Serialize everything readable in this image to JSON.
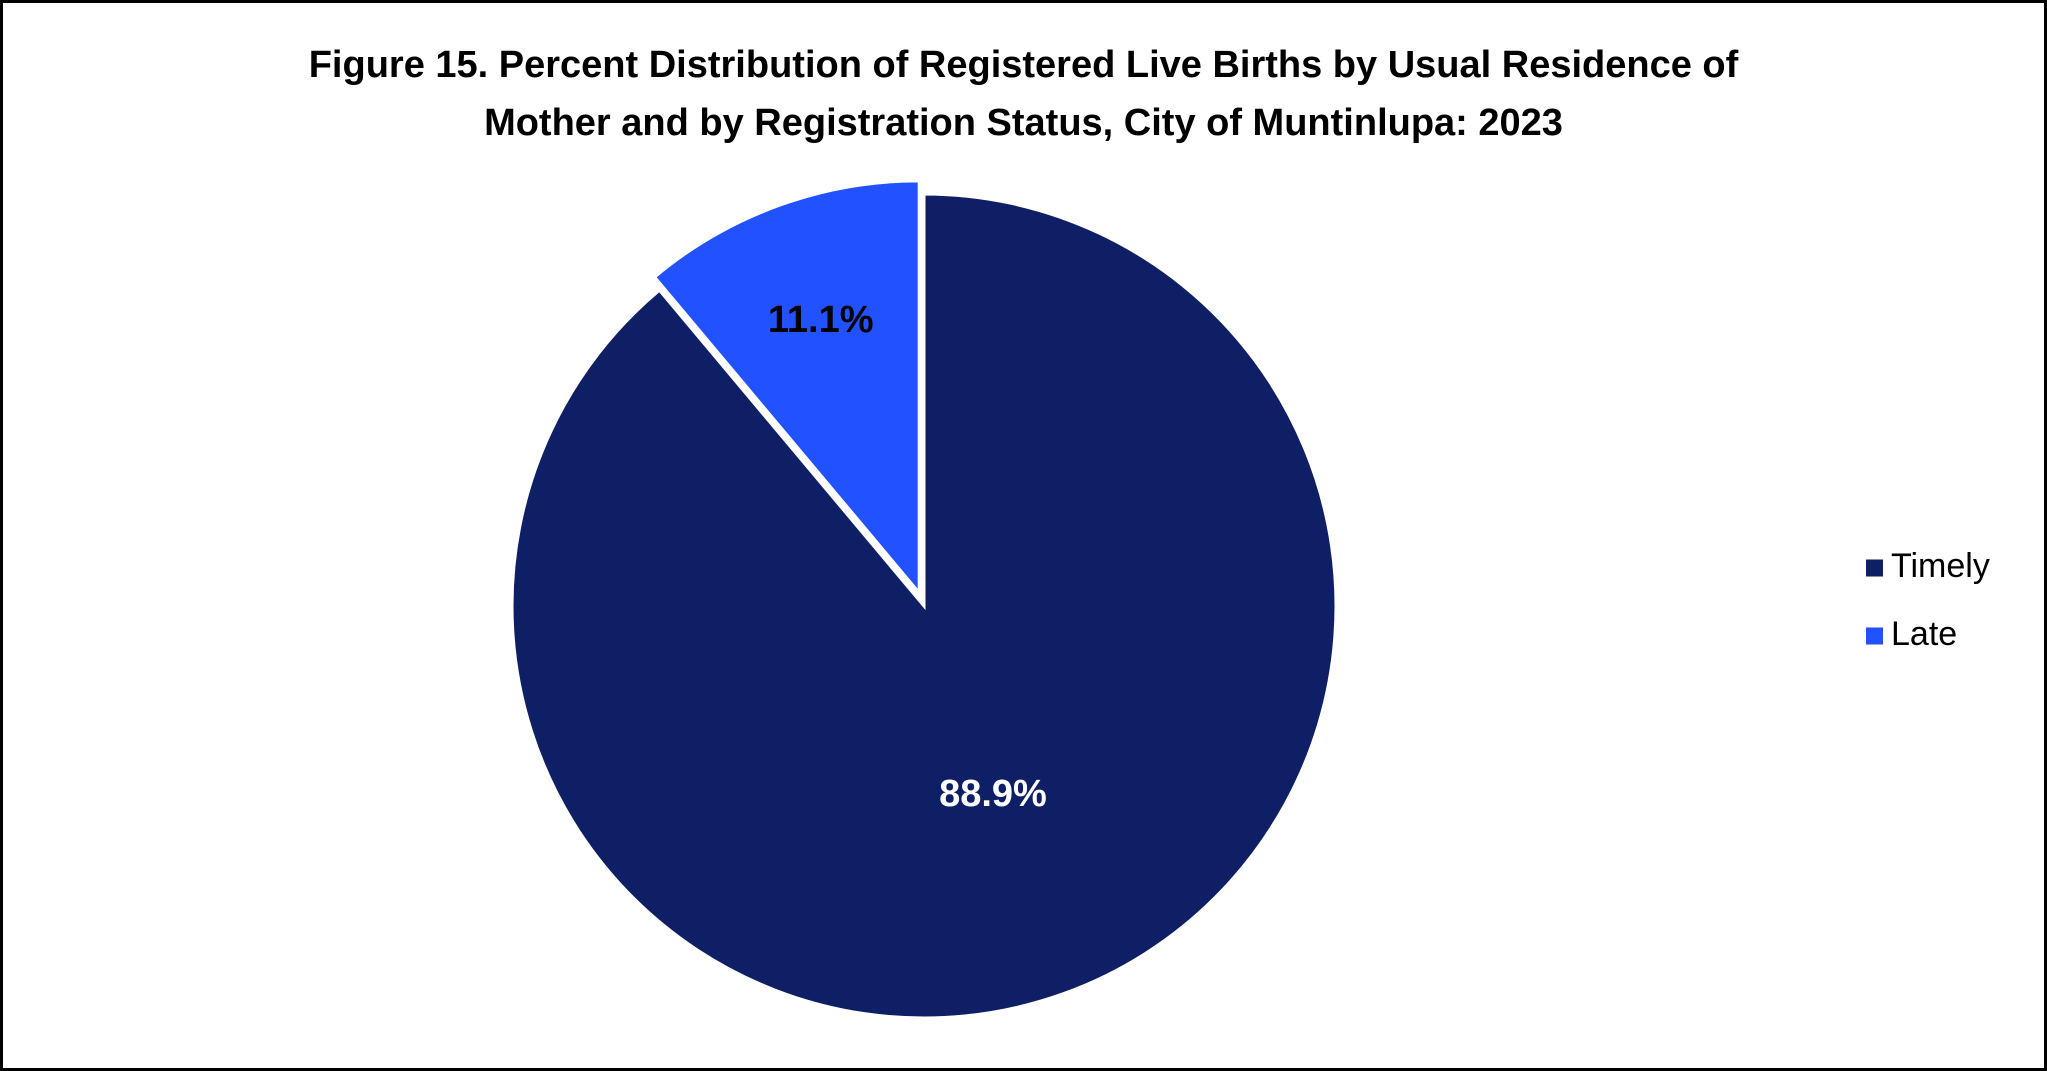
{
  "chart_data": {
    "type": "pie",
    "title_lines": [
      "Figure 15. Percent Distribution of Registered Live Births by Usual Residence of",
      "Mother and by Registration Status, City of Muntinlupa: 2023"
    ],
    "slices": [
      {
        "name": "Timely",
        "value": 88.9,
        "label": "88.9%",
        "color": "#0f1f66",
        "label_color": "#ffffff"
      },
      {
        "name": "Late",
        "value": 11.1,
        "label": "11.1%",
        "color": "#2252ff",
        "label_color": "#000000"
      }
    ],
    "start_angle": "12 o'clock",
    "direction": "clockwise",
    "exploded": "Late",
    "legend": {
      "position": "right",
      "entries": [
        "Timely",
        "Late"
      ]
    }
  }
}
